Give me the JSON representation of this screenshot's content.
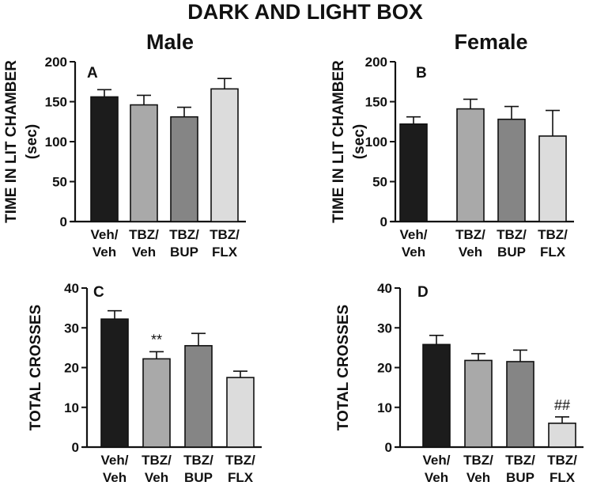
{
  "figure_title": "DARK AND LIGHT BOX",
  "column_titles": {
    "male": "Male",
    "female": "Female"
  },
  "colors": {
    "Veh/Veh": "#1c1c1c",
    "TBZ/Veh": "#a9a9a9",
    "TBZ/BUP": "#858585",
    "TBZ/FLX": "#dcdcdc"
  },
  "chart_data": [
    {
      "panel": "A",
      "column": "Male",
      "type": "bar",
      "ylabel_lines": [
        "TIME IN LIT CHAMBER",
        "(sec)"
      ],
      "categories": [
        [
          "Veh/",
          "Veh"
        ],
        [
          "TBZ/",
          "Veh"
        ],
        [
          "TBZ/",
          "BUP"
        ],
        [
          "TBZ/",
          "FLX"
        ]
      ],
      "values": [
        156,
        146,
        131,
        166
      ],
      "errors": [
        9,
        12,
        12,
        13
      ],
      "annotations": [
        "",
        "",
        "",
        ""
      ],
      "ylim": [
        0,
        200
      ],
      "yticks": [
        0,
        50,
        100,
        150,
        200
      ]
    },
    {
      "panel": "B",
      "column": "Female",
      "type": "bar",
      "ylabel_lines": [
        "TIME IN LIT CHAMBER",
        "(sec)"
      ],
      "categories": [
        [
          "Veh/",
          "Veh"
        ],
        [
          "TBZ/",
          "Veh"
        ],
        [
          "TBZ/",
          "BUP"
        ],
        [
          "TBZ/",
          "FLX"
        ]
      ],
      "values": [
        122,
        141,
        128,
        107
      ],
      "errors": [
        9,
        12,
        16,
        32
      ],
      "annotations": [
        "",
        "",
        "",
        ""
      ],
      "ylim": [
        0,
        200
      ],
      "yticks": [
        0,
        50,
        100,
        150,
        200
      ]
    },
    {
      "panel": "C",
      "column": "Male",
      "type": "bar",
      "ylabel_lines": [
        "TOTAL CROSSES"
      ],
      "categories": [
        [
          "Veh/",
          "Veh"
        ],
        [
          "TBZ/",
          "Veh"
        ],
        [
          "TBZ/",
          "BUP"
        ],
        [
          "TBZ/",
          "FLX"
        ]
      ],
      "values": [
        32.2,
        22.2,
        25.5,
        17.5
      ],
      "errors": [
        2.1,
        1.8,
        3.1,
        1.6
      ],
      "annotations": [
        "",
        "**",
        "",
        ""
      ],
      "ylim": [
        0,
        40
      ],
      "yticks": [
        0,
        10,
        20,
        30,
        40
      ]
    },
    {
      "panel": "D",
      "column": "Female",
      "type": "bar",
      "ylabel_lines": [
        "TOTAL CROSSES"
      ],
      "categories": [
        [
          "Veh/",
          "Veh"
        ],
        [
          "TBZ/",
          "Veh"
        ],
        [
          "TBZ/",
          "BUP"
        ],
        [
          "TBZ/",
          "FLX"
        ]
      ],
      "values": [
        25.8,
        21.8,
        21.5,
        6.0
      ],
      "errors": [
        2.3,
        1.7,
        2.9,
        1.6
      ],
      "annotations": [
        "",
        "",
        "",
        "##"
      ],
      "ylim": [
        0,
        40
      ],
      "yticks": [
        0,
        10,
        20,
        30,
        40
      ]
    }
  ]
}
